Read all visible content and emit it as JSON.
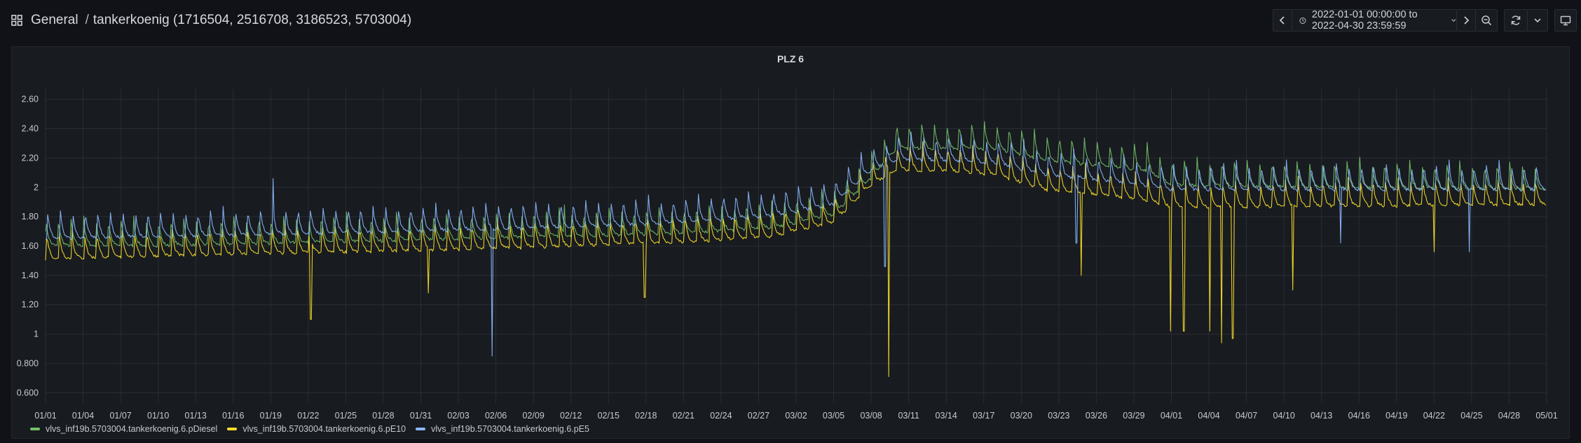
{
  "header": {
    "folder": "General",
    "separator": "/",
    "dashboard_title": "tankerkoenig (1716504, 2516708, 3186523, 5703004)",
    "time_range": "2022-01-01 00:00:00 to 2022-04-30 23:59:59"
  },
  "icons": {
    "dashboards": "grid-icon",
    "time_back": "chevron-left-icon",
    "clock": "clock-icon",
    "time_picker_dropdown": "chevron-down-icon",
    "time_forward": "chevron-right-icon",
    "zoom_out": "zoom-out-icon",
    "refresh": "refresh-icon",
    "refresh_dropdown": "chevron-down-icon",
    "tv_mode": "monitor-icon"
  },
  "panel": {
    "title": "PLZ 6"
  },
  "chart_data": {
    "type": "line",
    "title": "PLZ 6",
    "x_range": [
      "2022-01-01",
      "2022-05-01"
    ],
    "ylim": [
      0.53,
      2.67
    ],
    "y_ticks": [
      0.6,
      0.8,
      1,
      1.2,
      1.4,
      1.6,
      1.8,
      2,
      2.2,
      2.4,
      2.6
    ],
    "y_tick_labels": [
      "0.600",
      "0.800",
      "1",
      "1.20",
      "1.40",
      "1.60",
      "1.80",
      "2",
      "2.20",
      "2.40",
      "2.60"
    ],
    "x_tick_labels": [
      "01/01",
      "01/04",
      "01/07",
      "01/10",
      "01/13",
      "01/16",
      "01/19",
      "01/22",
      "01/25",
      "01/28",
      "01/31",
      "02/03",
      "02/06",
      "02/09",
      "02/12",
      "02/15",
      "02/18",
      "02/21",
      "02/24",
      "02/27",
      "03/02",
      "03/05",
      "03/08",
      "03/11",
      "03/14",
      "03/17",
      "03/20",
      "03/23",
      "03/26",
      "03/29",
      "04/01",
      "04/04",
      "04/07",
      "04/10",
      "04/13",
      "04/16",
      "04/19",
      "04/22",
      "04/25",
      "04/28",
      "05/01"
    ],
    "grid": true,
    "legend_position": "bottom-left",
    "series": [
      {
        "name": "vlvs_inf19b.5703004.tankerkoenig.6.pDiesel",
        "color": "#73bf69",
        "baseline": [
          [
            0,
            1.64
          ],
          [
            10,
            1.64
          ],
          [
            20,
            1.66
          ],
          [
            31,
            1.68
          ],
          [
            40,
            1.7
          ],
          [
            50,
            1.72
          ],
          [
            58,
            1.76
          ],
          [
            63,
            1.85
          ],
          [
            66,
            2.1
          ],
          [
            68,
            2.3
          ],
          [
            72,
            2.3
          ],
          [
            76,
            2.3
          ],
          [
            80,
            2.22
          ],
          [
            88,
            2.15
          ],
          [
            90,
            2.05
          ],
          [
            119,
            2.02
          ]
        ],
        "spikes": [
          [
            41.5,
            1.88
          ]
        ]
      },
      {
        "name": "vlvs_inf19b.5703004.tankerkoenig.6.pE10",
        "color": "#fade2a",
        "baseline": [
          [
            0,
            1.55
          ],
          [
            10,
            1.57
          ],
          [
            20,
            1.59
          ],
          [
            31,
            1.61
          ],
          [
            40,
            1.63
          ],
          [
            50,
            1.66
          ],
          [
            58,
            1.7
          ],
          [
            63,
            1.8
          ],
          [
            66,
            2.05
          ],
          [
            68,
            2.15
          ],
          [
            72,
            2.15
          ],
          [
            76,
            2.12
          ],
          [
            80,
            2.02
          ],
          [
            88,
            1.95
          ],
          [
            90,
            1.9
          ],
          [
            119,
            1.92
          ]
        ],
        "spikes": [
          [
            21.2,
            1.1
          ],
          [
            30.6,
            1.28
          ],
          [
            47.9,
            1.25
          ],
          [
            67.4,
            0.71
          ],
          [
            82.8,
            1.4
          ],
          [
            89.9,
            1.02
          ],
          [
            91.0,
            1.02
          ],
          [
            93.1,
            1.02
          ],
          [
            94.0,
            0.94
          ],
          [
            94.9,
            0.97
          ],
          [
            99.7,
            1.3
          ],
          [
            111.0,
            1.56
          ]
        ]
      },
      {
        "name": "vlvs_inf19b.5703004.tankerkoenig.6.pE5",
        "color": "#8ab8ff",
        "baseline": [
          [
            0,
            1.69
          ],
          [
            10,
            1.7
          ],
          [
            20,
            1.72
          ],
          [
            31,
            1.74
          ],
          [
            40,
            1.76
          ],
          [
            50,
            1.79
          ],
          [
            58,
            1.84
          ],
          [
            63,
            1.92
          ],
          [
            66,
            2.15
          ],
          [
            68,
            2.22
          ],
          [
            72,
            2.22
          ],
          [
            76,
            2.2
          ],
          [
            80,
            2.12
          ],
          [
            88,
            2.05
          ],
          [
            90,
            2.02
          ],
          [
            119,
            2.02
          ]
        ],
        "spikes": [
          [
            18.2,
            2.06
          ],
          [
            35.7,
            0.85
          ],
          [
            67.1,
            1.46
          ],
          [
            82.4,
            1.62
          ],
          [
            103.5,
            1.62
          ],
          [
            113.8,
            1.56
          ]
        ]
      }
    ]
  }
}
